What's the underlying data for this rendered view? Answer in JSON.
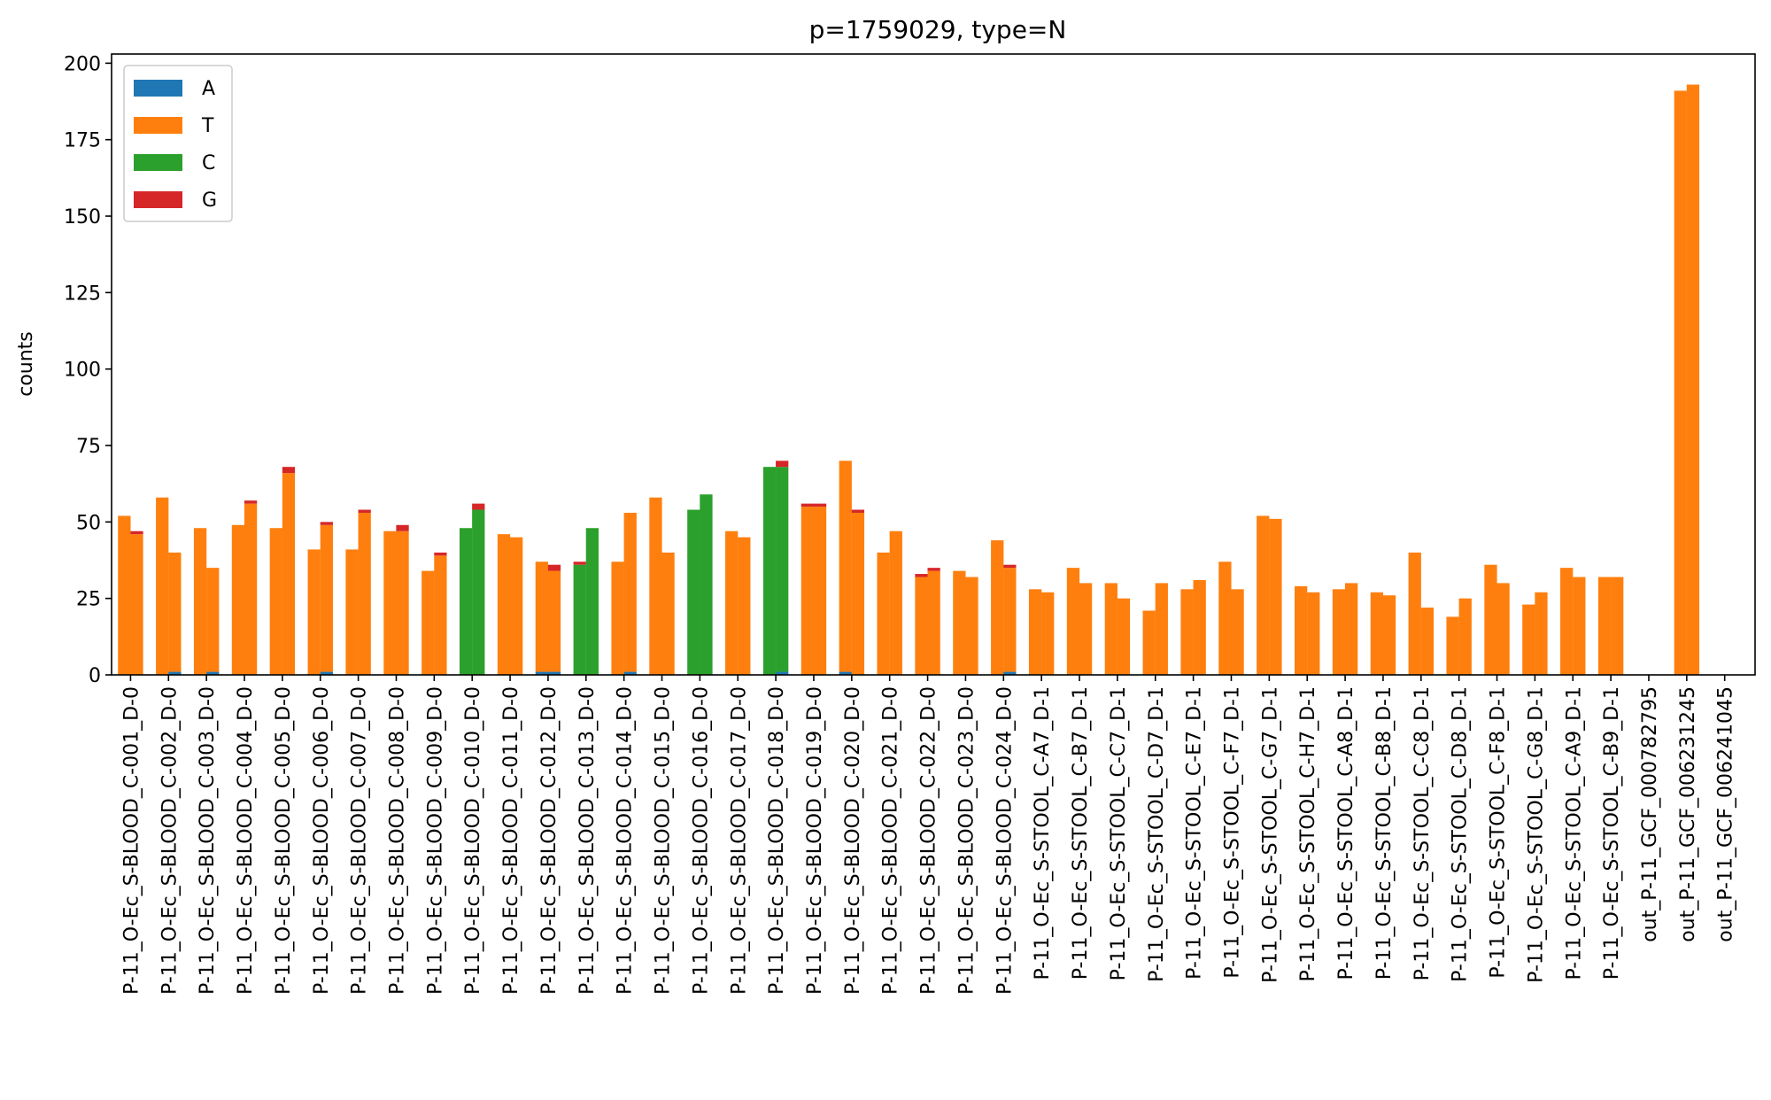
{
  "chart_data": {
    "type": "bar",
    "stacked": true,
    "title": "p=1759029, type=N",
    "xlabel": "",
    "ylabel": "counts",
    "ylim": [
      0,
      203
    ],
    "yticks": [
      0,
      25,
      50,
      75,
      100,
      125,
      150,
      175,
      200
    ],
    "grid": false,
    "legend_position": "top-left",
    "categories": [
      "P-11_O-Ec_S-BLOOD_C-001_D-0",
      "P-11_O-Ec_S-BLOOD_C-002_D-0",
      "P-11_O-Ec_S-BLOOD_C-003_D-0",
      "P-11_O-Ec_S-BLOOD_C-004_D-0",
      "P-11_O-Ec_S-BLOOD_C-005_D-0",
      "P-11_O-Ec_S-BLOOD_C-006_D-0",
      "P-11_O-Ec_S-BLOOD_C-007_D-0",
      "P-11_O-Ec_S-BLOOD_C-008_D-0",
      "P-11_O-Ec_S-BLOOD_C-009_D-0",
      "P-11_O-Ec_S-BLOOD_C-010_D-0",
      "P-11_O-Ec_S-BLOOD_C-011_D-0",
      "P-11_O-Ec_S-BLOOD_C-012_D-0",
      "P-11_O-Ec_S-BLOOD_C-013_D-0",
      "P-11_O-Ec_S-BLOOD_C-014_D-0",
      "P-11_O-Ec_S-BLOOD_C-015_D-0",
      "P-11_O-Ec_S-BLOOD_C-016_D-0",
      "P-11_O-Ec_S-BLOOD_C-017_D-0",
      "P-11_O-Ec_S-BLOOD_C-018_D-0",
      "P-11_O-Ec_S-BLOOD_C-019_D-0",
      "P-11_O-Ec_S-BLOOD_C-020_D-0",
      "P-11_O-Ec_S-BLOOD_C-021_D-0",
      "P-11_O-Ec_S-BLOOD_C-022_D-0",
      "P-11_O-Ec_S-BLOOD_C-023_D-0",
      "P-11_O-Ec_S-BLOOD_C-024_D-0",
      "P-11_O-Ec_S-STOOL_C-A7_D-1",
      "P-11_O-Ec_S-STOOL_C-B7_D-1",
      "P-11_O-Ec_S-STOOL_C-C7_D-1",
      "P-11_O-Ec_S-STOOL_C-D7_D-1",
      "P-11_O-Ec_S-STOOL_C-E7_D-1",
      "P-11_O-Ec_S-STOOL_C-F7_D-1",
      "P-11_O-Ec_S-STOOL_C-G7_D-1",
      "P-11_O-Ec_S-STOOL_C-H7_D-1",
      "P-11_O-Ec_S-STOOL_C-A8_D-1",
      "P-11_O-Ec_S-STOOL_C-B8_D-1",
      "P-11_O-Ec_S-STOOL_C-C8_D-1",
      "P-11_O-Ec_S-STOOL_C-D8_D-1",
      "P-11_O-Ec_S-STOOL_C-F8_D-1",
      "P-11_O-Ec_S-STOOL_C-G8_D-1",
      "P-11_O-Ec_S-STOOL_C-A9_D-1",
      "P-11_O-Ec_S-STOOL_C-B9_D-1",
      "out_P-11_GCF_000782795",
      "out_P-11_GCF_006231245",
      "out_P-11_GCF_006241045"
    ],
    "bars_per_category": 2,
    "series": [
      {
        "name": "A",
        "color": "#1f77b4",
        "values_left": [
          0,
          0,
          0,
          0,
          0,
          0,
          0,
          0,
          0,
          0,
          0,
          1,
          0,
          0,
          0,
          0,
          0,
          0,
          0,
          1,
          0,
          0,
          0,
          0,
          0,
          0,
          0,
          0,
          0,
          0,
          0,
          0,
          0,
          0,
          0,
          0,
          0,
          0,
          0,
          0,
          0,
          0,
          0
        ],
        "values_right": [
          0,
          1,
          1,
          0,
          0,
          1,
          0,
          0,
          0,
          0,
          0,
          1,
          0,
          1,
          0,
          0,
          0,
          1,
          0,
          0,
          0,
          0,
          0,
          1,
          0,
          0,
          0,
          0,
          0,
          0,
          0,
          0,
          0,
          0,
          0,
          0,
          0,
          0,
          0,
          0,
          0,
          0,
          0
        ]
      },
      {
        "name": "T",
        "color": "#ff7f0e",
        "values_left": [
          52,
          58,
          48,
          49,
          48,
          41,
          41,
          47,
          34,
          0,
          46,
          36,
          0,
          37,
          58,
          0,
          47,
          0,
          55,
          69,
          40,
          32,
          34,
          44,
          28,
          35,
          30,
          21,
          28,
          37,
          52,
          29,
          28,
          27,
          40,
          19,
          36,
          23,
          35,
          32,
          0,
          191,
          0
        ],
        "values_right": [
          46,
          39,
          34,
          56,
          66,
          48,
          53,
          47,
          39,
          0,
          45,
          33,
          0,
          52,
          40,
          0,
          45,
          0,
          55,
          53,
          47,
          34,
          32,
          34,
          27,
          30,
          25,
          30,
          31,
          28,
          51,
          27,
          30,
          26,
          22,
          25,
          30,
          27,
          32,
          32,
          0,
          193,
          0
        ]
      },
      {
        "name": "C",
        "color": "#2ca02c",
        "values_left": [
          0,
          0,
          0,
          0,
          0,
          0,
          0,
          0,
          0,
          48,
          0,
          0,
          36,
          0,
          0,
          54,
          0,
          68,
          0,
          0,
          0,
          0,
          0,
          0,
          0,
          0,
          0,
          0,
          0,
          0,
          0,
          0,
          0,
          0,
          0,
          0,
          0,
          0,
          0,
          0,
          0,
          0,
          0
        ],
        "values_right": [
          0,
          0,
          0,
          0,
          0,
          0,
          0,
          0,
          0,
          54,
          0,
          0,
          48,
          0,
          0,
          59,
          0,
          67,
          0,
          0,
          0,
          0,
          0,
          0,
          0,
          0,
          0,
          0,
          0,
          0,
          0,
          0,
          0,
          0,
          0,
          0,
          0,
          0,
          0,
          0,
          0,
          0,
          0
        ]
      },
      {
        "name": "G",
        "color": "#d62728",
        "values_left": [
          0,
          0,
          0,
          0,
          0,
          0,
          0,
          0,
          0,
          0,
          0,
          0,
          1,
          0,
          0,
          0,
          0,
          0,
          1,
          0,
          0,
          1,
          0,
          0,
          0,
          0,
          0,
          0,
          0,
          0,
          0,
          0,
          0,
          0,
          0,
          0,
          0,
          0,
          0,
          0,
          0,
          0,
          0
        ],
        "values_right": [
          1,
          0,
          0,
          1,
          2,
          1,
          1,
          2,
          1,
          2,
          0,
          2,
          0,
          0,
          0,
          0,
          0,
          2,
          1,
          1,
          0,
          1,
          0,
          1,
          0,
          0,
          0,
          0,
          0,
          0,
          0,
          0,
          0,
          0,
          0,
          0,
          0,
          0,
          0,
          0,
          0,
          0,
          0
        ]
      }
    ]
  }
}
